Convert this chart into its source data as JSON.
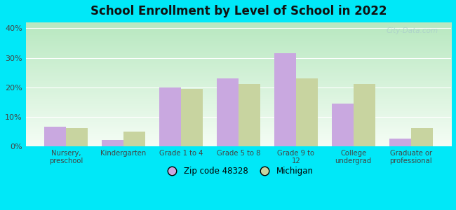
{
  "title": "School Enrollment by Level of School in 2022",
  "categories": [
    "Nursery,\npreschool",
    "Kindergarten",
    "Grade 1 to 4",
    "Grade 5 to 8",
    "Grade 9 to\n12",
    "College\nundergrad",
    "Graduate or\nprofessional"
  ],
  "zip_values": [
    6.5,
    2.0,
    20.0,
    23.0,
    31.5,
    14.5,
    2.5
  ],
  "michigan_values": [
    6.0,
    5.0,
    19.5,
    21.0,
    23.0,
    21.0,
    6.0
  ],
  "zip_color": "#c9a8e0",
  "michigan_color": "#c8d4a0",
  "background_outer": "#00e8f8",
  "grad_top": "#f5fdf5",
  "grad_bottom": "#b8e8c0",
  "ylim": [
    0,
    42
  ],
  "yticks": [
    0,
    10,
    20,
    30,
    40
  ],
  "bar_width": 0.38,
  "legend_zip_label": "Zip code 48328",
  "legend_michigan_label": "Michigan",
  "watermark": "City-Data.com"
}
